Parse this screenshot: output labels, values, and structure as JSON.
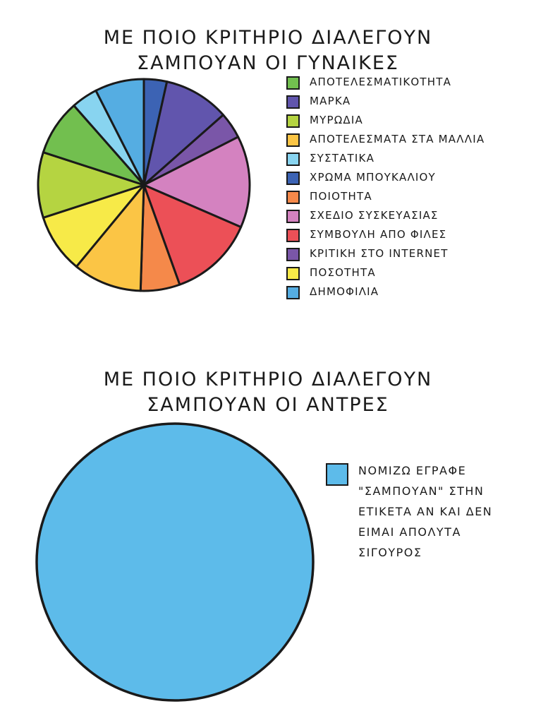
{
  "chart_data": [
    {
      "type": "pie",
      "title_lines": [
        "ΜΕ ΠΟΙΟ ΚΡΙΤΗΡΙΟ ΔΙΑΛΕΓΟΥΝ",
        "ΣΑΜΠΟΥΑΝ ΟΙ ΓΥΝΑΙΚΕΣ"
      ],
      "legend_position": "right",
      "slices": [
        {
          "label": "ΧΡΩΜΑ ΜΠΟΥΚΑΛΙΟΥ",
          "value": 3.5,
          "color": "#3c63b4"
        },
        {
          "label": "ΜΑΡΚΑ",
          "value": 10,
          "color": "#6155ad"
        },
        {
          "label": "ΚΡΙΤΙΚΗ ΣΤΟ INTERNET",
          "value": 4,
          "color": "#7a56a8"
        },
        {
          "label": "ΣΧΕΔΙΟ ΣΥΣΚΕΥΑΣΙΑΣ",
          "value": 14,
          "color": "#d482c0"
        },
        {
          "label": "ΣΥΜΒΟΥΛΗ ΑΠΟ ΦΙΛΕΣ",
          "value": 13,
          "color": "#ec5057"
        },
        {
          "label": "ΠΟΙΟΤΗΤΑ",
          "value": 6,
          "color": "#f5894a"
        },
        {
          "label": "ΑΠΟΤΕΛΕΣΜΑΤΑ ΣΤΑ ΜΑΛΛΙΑ",
          "value": 10.5,
          "color": "#fbc545"
        },
        {
          "label": "ΠΟΣΟΤΗΤΑ",
          "value": 9,
          "color": "#f7ea48"
        },
        {
          "label": "ΜΥΡΩΔΙΑ",
          "value": 10,
          "color": "#b5d441"
        },
        {
          "label": "ΑΠΟΤΕΛΕΣΜΑΤΙΚΟΤΗΤΑ",
          "value": 8.5,
          "color": "#72bf4f"
        },
        {
          "label": "ΣΥΣΤΑΤΙΚΑ",
          "value": 4,
          "color": "#88d4f0"
        },
        {
          "label": "ΔΗΜΟΦΙΛΙΑ",
          "value": 7.5,
          "color": "#55ade2"
        }
      ],
      "legend": [
        {
          "label": "ΑΠΟΤΕΛΕΣΜΑΤΙΚΟΤΗΤΑ",
          "color": "#72bf4f"
        },
        {
          "label": "ΜΑΡΚΑ",
          "color": "#6155ad"
        },
        {
          "label": "ΜΥΡΩΔΙΑ",
          "color": "#b5d441"
        },
        {
          "label": "ΑΠΟΤΕΛΕΣΜΑΤΑ ΣΤΑ ΜΑΛΛΙΑ",
          "color": "#fbc545"
        },
        {
          "label": "ΣΥΣΤΑΤΙΚΑ",
          "color": "#88d4f0"
        },
        {
          "label": "ΧΡΩΜΑ ΜΠΟΥΚΑΛΙΟΥ",
          "color": "#3c63b4"
        },
        {
          "label": "ΠΟΙΟΤΗΤΑ",
          "color": "#f5894a"
        },
        {
          "label": "ΣΧΕΔΙΟ ΣΥΣΚΕΥΑΣΙΑΣ",
          "color": "#d482c0"
        },
        {
          "label": "ΣΥΜΒΟΥΛΗ ΑΠΟ ΦΙΛΕΣ",
          "color": "#ec5057"
        },
        {
          "label": "ΚΡΙΤΙΚΗ ΣΤΟ INTERNET",
          "color": "#7a56a8"
        },
        {
          "label": "ΠΟΣΟΤΗΤΑ",
          "color": "#f7ea48"
        },
        {
          "label": "ΔΗΜΟΦΙΛΙΑ",
          "color": "#55ade2"
        }
      ]
    },
    {
      "type": "pie",
      "title_lines": [
        "ΜΕ ΠΟΙΟ ΚΡΙΤΗΡΙΟ ΔΙΑΛΕΓΟΥΝ",
        "ΣΑΜΠΟΥΑΝ ΟΙ ΑΝΤΡΕΣ"
      ],
      "legend_position": "right",
      "slices": [
        {
          "label": "ΝΟΜΙΖΩ ΕΓΡΑΦΕ \"ΣΑΜΠΟΥΑΝ\" ΣΤΗΝ ΕΤΙΚΕΤΑ ΑΝ ΚΑΙ ΔΕΝ ΕΙΜΑΙ ΑΠΟΛΥΤΑ ΣΙΓΟΥΡΟΣ",
          "value": 100,
          "color": "#5dbbea"
        }
      ],
      "legend": [
        {
          "color": "#5dbbea",
          "label_lines": [
            "ΝΟΜΙΖΩ ΕΓΡΑΦΕ",
            "\"ΣΑΜΠΟΥΑΝ\" ΣΤΗΝ",
            "ΕΤΙΚΕΤΑ ΑΝ ΚΑΙ ΔΕΝ",
            "ΕΙΜΑΙ ΑΠΟΛΥΤΑ",
            "ΣΙΓΟΥΡΟΣ"
          ]
        }
      ]
    }
  ]
}
